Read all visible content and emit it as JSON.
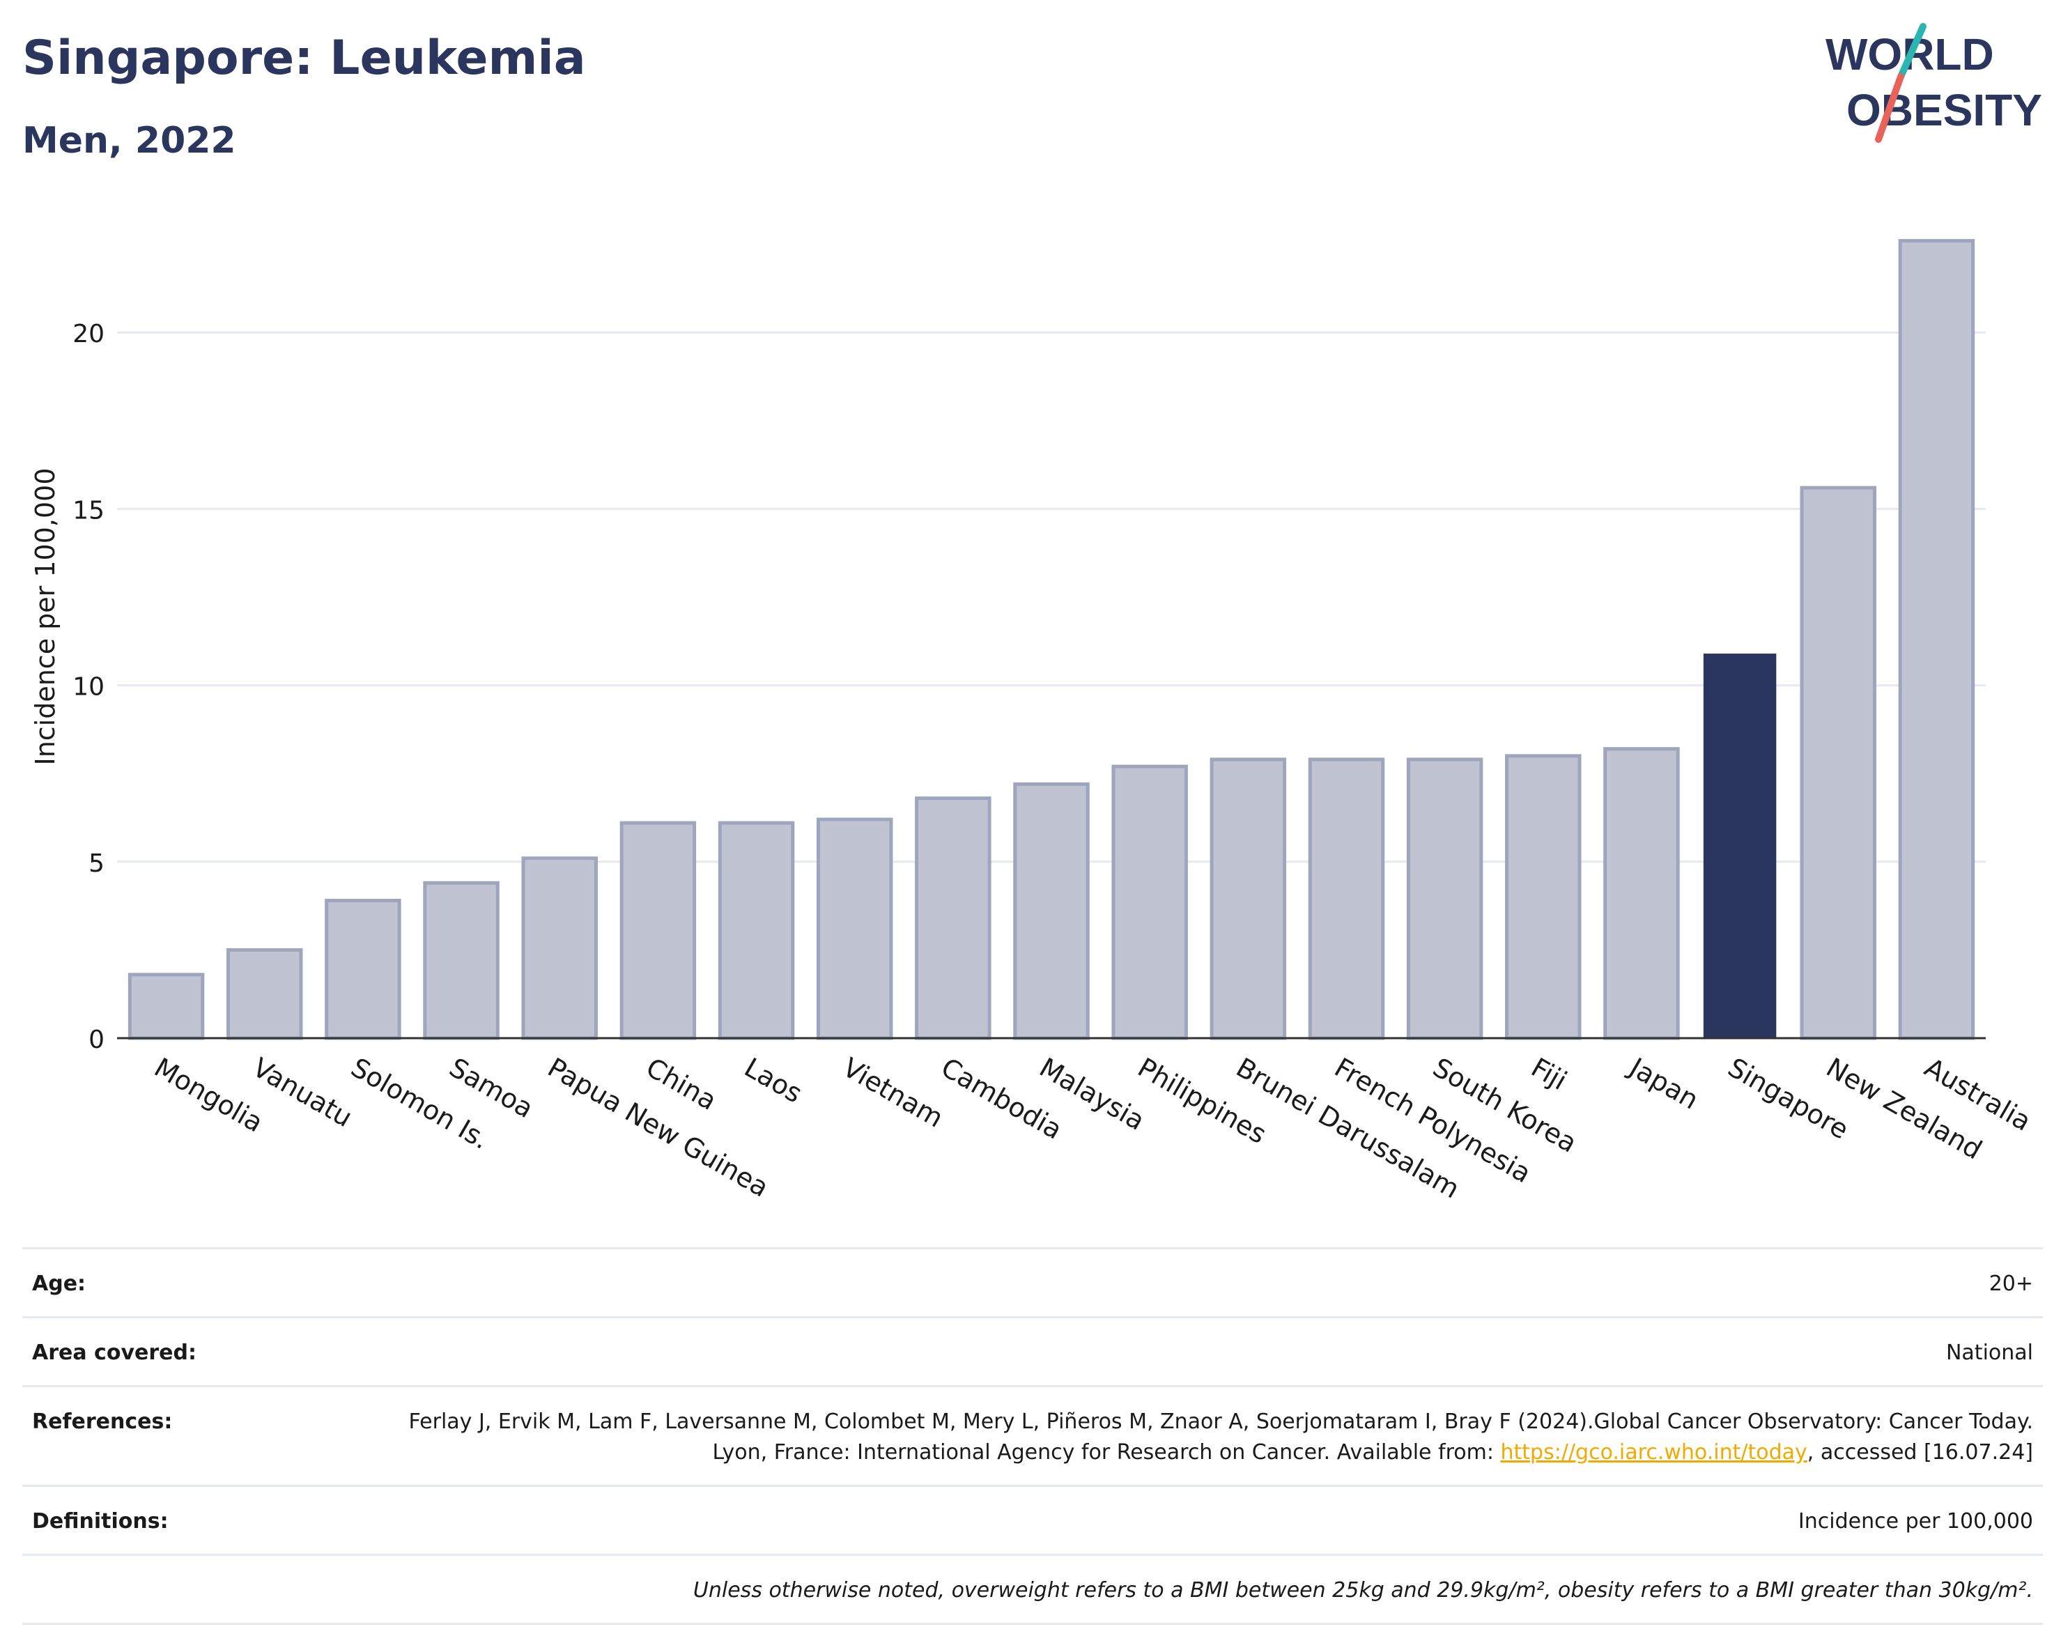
{
  "title": "Singapore: Leukemia",
  "subtitle": "Men, 2022",
  "logo": {
    "line1": "WORLD",
    "line2": "OBESITY",
    "colors": {
      "text": "#2b365e",
      "slash_teal": "#2bb5b0",
      "slash_coral": "#e8635a"
    }
  },
  "chart_data": {
    "type": "bar",
    "title": "Singapore: Leukemia",
    "subtitle": "Men, 2022",
    "xlabel": "",
    "ylabel": "Incidence per 100,000",
    "ylim": [
      0,
      23.5
    ],
    "yticks": [
      0,
      5,
      10,
      15,
      20
    ],
    "grid": true,
    "legend": "none",
    "highlight": "Singapore",
    "colors": {
      "bar": "#c0c4d2",
      "bar_edge": "#9ea5bd",
      "highlight": "#2b365e"
    },
    "categories": [
      "Mongolia",
      "Vanuatu",
      "Solomon Is.",
      "Samoa",
      "Papua New Guinea",
      "China",
      "Laos",
      "Vietnam",
      "Cambodia",
      "Malaysia",
      "Philippines",
      "Brunei Darussalam",
      "French Polynesia",
      "South Korea",
      "Fiji",
      "Japan",
      "Singapore",
      "New Zealand",
      "Australia"
    ],
    "values": [
      1.8,
      2.5,
      3.9,
      4.4,
      5.1,
      6.1,
      6.1,
      6.2,
      6.8,
      7.2,
      7.7,
      7.9,
      7.9,
      7.9,
      8.0,
      8.2,
      10.9,
      15.6,
      22.6
    ]
  },
  "info": {
    "age": {
      "label": "Age:",
      "value": "20+"
    },
    "area": {
      "label": "Area covered:",
      "value": "National"
    },
    "references": {
      "label": "References:",
      "text_before": "Ferlay J, Ervik M, Lam F, Laversanne M, Colombet M, Mery L, Piñeros M, Znaor A, Soerjomataram I, Bray F (2024).Global Cancer Observatory: Cancer Today. Lyon, France: International Agency for Research on Cancer. Available from: ",
      "link": "https://gco.iarc.who.int/today",
      "text_after": ", accessed [16.07.24]"
    },
    "definitions": {
      "label": "Definitions:",
      "value": "Incidence per 100,000"
    },
    "note": "Unless otherwise noted, overweight refers to a BMI between 25kg and 29.9kg/m², obesity refers to a BMI greater than 30kg/m²."
  }
}
